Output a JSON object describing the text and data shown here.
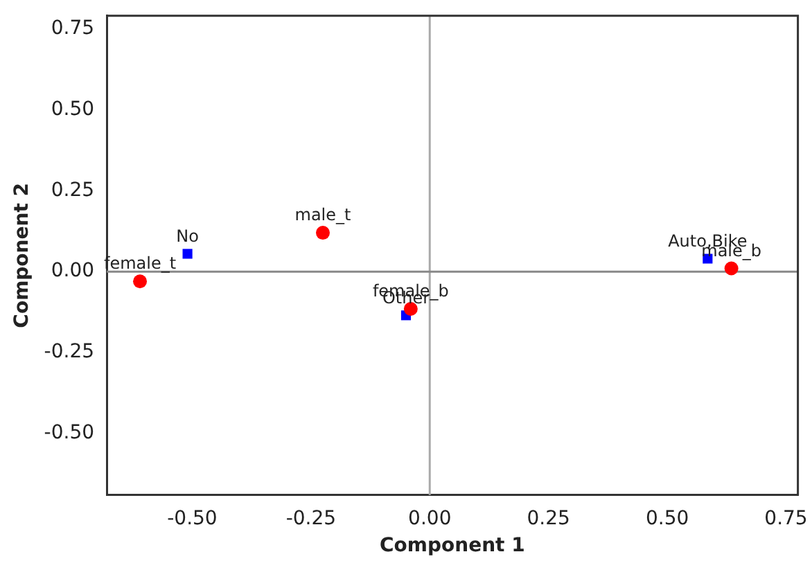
{
  "chart_data": {
    "type": "scatter",
    "xlabel": "Component 1",
    "ylabel": "Component 2",
    "xlim": [
      -0.68,
      0.775
    ],
    "ylim": [
      -0.69,
      0.79
    ],
    "xticks": [
      {
        "value": -0.5,
        "label": "-0.50"
      },
      {
        "value": -0.25,
        "label": "-0.25"
      },
      {
        "value": 0,
        "label": "0.00"
      },
      {
        "value": 0.25,
        "label": "0.25"
      },
      {
        "value": 0.5,
        "label": "0.50"
      },
      {
        "value": 0.75,
        "label": "0.75"
      }
    ],
    "yticks": [
      {
        "value": -0.5,
        "label": "-0.50"
      },
      {
        "value": -0.25,
        "label": "-0.25"
      },
      {
        "value": 0,
        "label": "0.00"
      },
      {
        "value": 0.25,
        "label": "0.25"
      },
      {
        "value": 0.5,
        "label": "0.50"
      },
      {
        "value": 0.75,
        "label": "0.75"
      }
    ],
    "series": [
      {
        "color": "#ff0000",
        "marker": "circle",
        "x": [
          -0.61,
          -0.225,
          -0.04,
          0.635
        ],
        "values": [
          -0.03,
          0.12,
          -0.115,
          0.01
        ]
      },
      {
        "color": "#0000ff",
        "marker": "square",
        "x": [
          -0.51,
          -0.05,
          0.585
        ],
        "values": [
          0.055,
          -0.135,
          0.04
        ]
      }
    ],
    "annotations": [
      {
        "text": "female_t",
        "x": -0.61,
        "y": -0.03
      },
      {
        "text": "male_t",
        "x": -0.225,
        "y": 0.12
      },
      {
        "text": "female_b",
        "x": -0.04,
        "y": -0.115
      },
      {
        "text": "male_b",
        "x": 0.635,
        "y": 0.01
      },
      {
        "text": "No",
        "x": -0.51,
        "y": 0.055
      },
      {
        "text": "Other",
        "x": -0.05,
        "y": -0.135
      },
      {
        "text": "Auto,Bike",
        "x": 0.585,
        "y": 0.04
      }
    ],
    "ref_lines": [
      {
        "axis": "x",
        "value": 0,
        "color": "#aaaaaa"
      },
      {
        "axis": "y",
        "value": 0,
        "color": "#888888"
      }
    ],
    "grid": false,
    "legend": false
  }
}
